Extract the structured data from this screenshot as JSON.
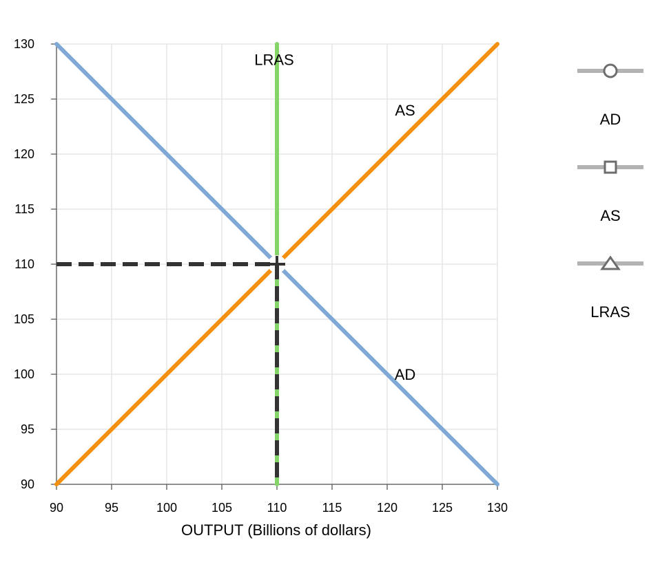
{
  "chart_data": {
    "type": "line",
    "title": "",
    "xlabel": "OUTPUT (Billions of dollars)",
    "ylabel": "",
    "xlim": [
      90,
      130
    ],
    "ylim": [
      90,
      130
    ],
    "xticks": [
      90,
      95,
      100,
      105,
      110,
      115,
      120,
      125,
      130
    ],
    "yticks": [
      90,
      95,
      100,
      105,
      110,
      115,
      120,
      125,
      130
    ],
    "grid": true,
    "legend_position": "right",
    "series": [
      {
        "name": "AD",
        "color": "#7fa8d6",
        "marker": "circle",
        "x": [
          90,
          130
        ],
        "y": [
          130,
          90
        ],
        "label_at": [
          121,
          100
        ]
      },
      {
        "name": "AS",
        "color": "#f5900e",
        "marker": "square",
        "x": [
          90,
          130
        ],
        "y": [
          90,
          130
        ],
        "label_at": [
          121,
          124
        ]
      },
      {
        "name": "LRAS",
        "color": "#84d467",
        "marker": "triangle",
        "x": [
          110,
          110
        ],
        "y": [
          90,
          130
        ],
        "label_at": [
          110,
          128.6
        ]
      }
    ],
    "equilibrium": {
      "x": 110,
      "y": 110
    }
  }
}
